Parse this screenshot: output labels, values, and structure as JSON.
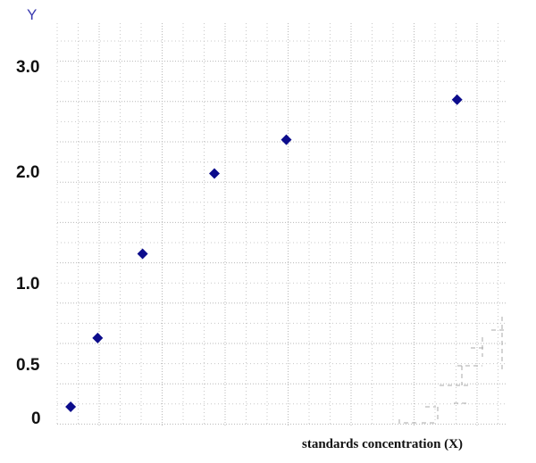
{
  "chart_data": {
    "type": "scatter",
    "title": "",
    "xlabel": "standards concentration (X)",
    "ylabel": "Y",
    "y_tick_labels": [
      "0",
      "0.5",
      "1.0",
      "2.0",
      "3.0"
    ],
    "y_tick_values": [
      0,
      0.5,
      1.0,
      2.0,
      3.0
    ],
    "ylim": [
      -0.1,
      3.2
    ],
    "xlim": [
      0,
      1
    ],
    "x_ticks_labeled": false,
    "grid": true,
    "legend": "none",
    "marker": "diamond",
    "point_color": "#0c0c8c",
    "series": [
      {
        "x": [
          0.03,
          0.09,
          0.19,
          0.35,
          0.51,
          0.89
        ],
        "y": [
          0.1,
          0.66,
          1.26,
          1.98,
          2.3,
          2.68
        ]
      }
    ]
  }
}
